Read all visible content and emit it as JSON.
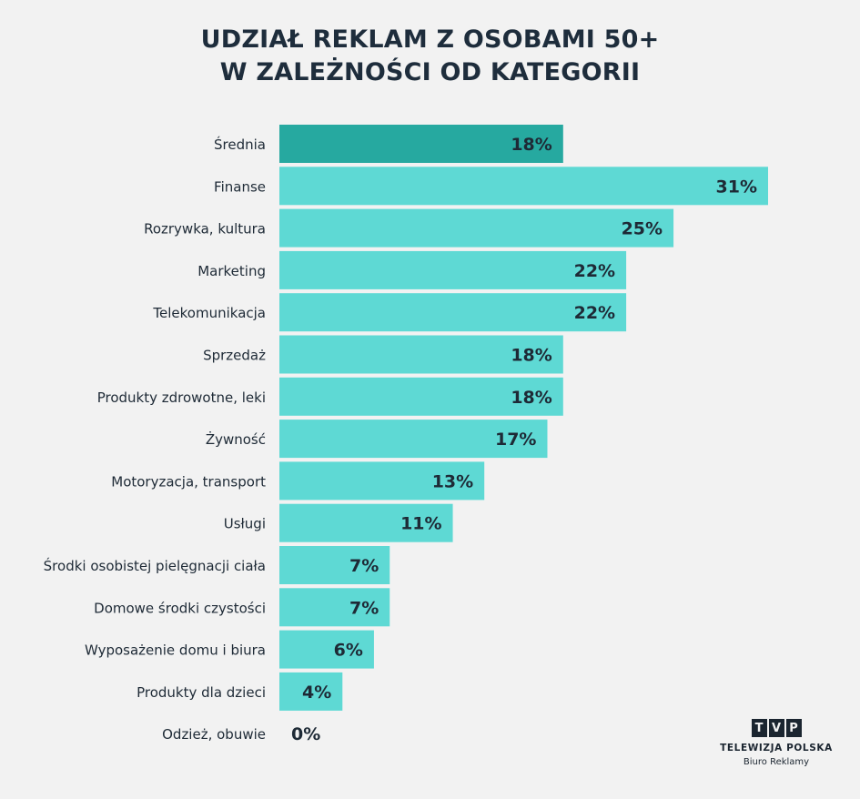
{
  "chart_data": {
    "type": "bar",
    "orientation": "horizontal",
    "title": [
      "UDZIAŁ REKLAM Z OSOBAMI 50+",
      "W ZALEŻNOŚCI OD KATEGORII"
    ],
    "categories": [
      "Średnia",
      "Finanse",
      "Rozrywka, kultura",
      "Marketing",
      "Telekomunikacja",
      "Sprzedaż",
      "Produkty zdrowotne, leki",
      "Żywność",
      "Motoryzacja, transport",
      "Usługi",
      "Środki osobistej pielęgnacji ciała",
      "Domowe środki czystości",
      "Wyposażenie domu i biura",
      "Produkty dla dzieci",
      "Odzież, obuwie"
    ],
    "values": [
      18,
      31,
      25,
      22,
      22,
      18,
      18,
      17,
      13,
      11,
      7,
      7,
      6,
      4,
      0
    ],
    "value_labels": [
      "18%",
      "31%",
      "25%",
      "22%",
      "22%",
      "18%",
      "18%",
      "17%",
      "13%",
      "11%",
      "7%",
      "7%",
      "6%",
      "4%",
      "0%"
    ],
    "highlight_index": 0,
    "colors": {
      "bar": "#5ed9d4",
      "highlight": "#26a9a0",
      "text": "#1e2a36"
    },
    "xlim": [
      0,
      31
    ]
  },
  "logo": {
    "letters": [
      "T",
      "V",
      "P"
    ],
    "name": "TELEWIZJA POLSKA",
    "subtitle": "Biuro Reklamy"
  }
}
